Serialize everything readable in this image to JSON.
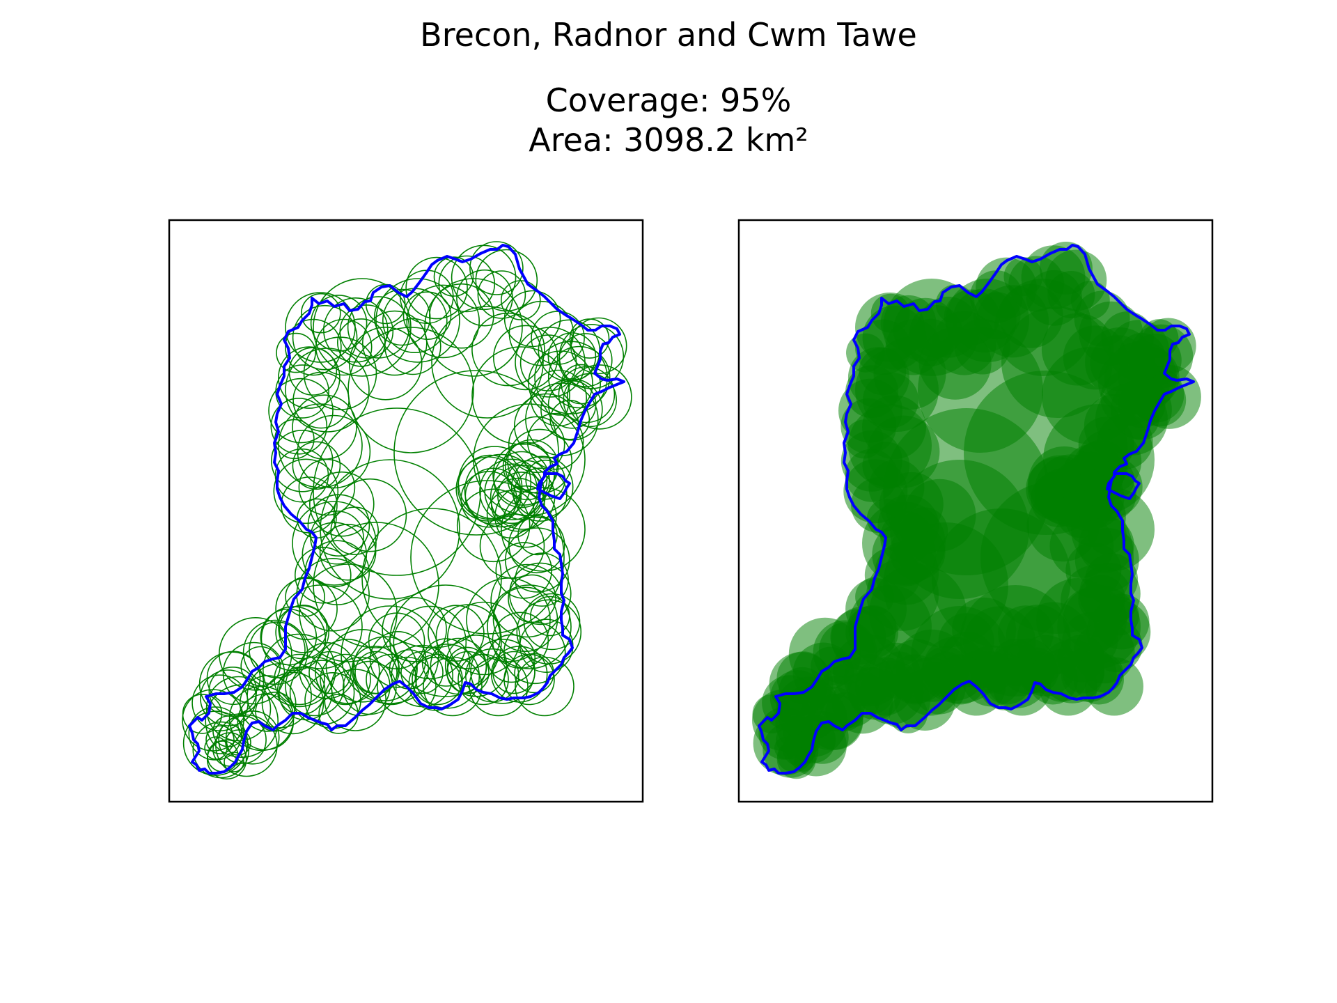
{
  "figure": {
    "title": "Brecon, Radnor and Cwm Tawe",
    "coverage_text": "Coverage: 95%",
    "area_text": "Area: 3098.2 km²"
  },
  "colors": {
    "boundary": "#0000ff",
    "circles": "#008000",
    "frame": "#000000",
    "background": "#ffffff"
  },
  "panels": [
    {
      "name": "outline-circles",
      "style": "outline"
    },
    {
      "name": "filled-circles",
      "style": "filled"
    }
  ]
}
